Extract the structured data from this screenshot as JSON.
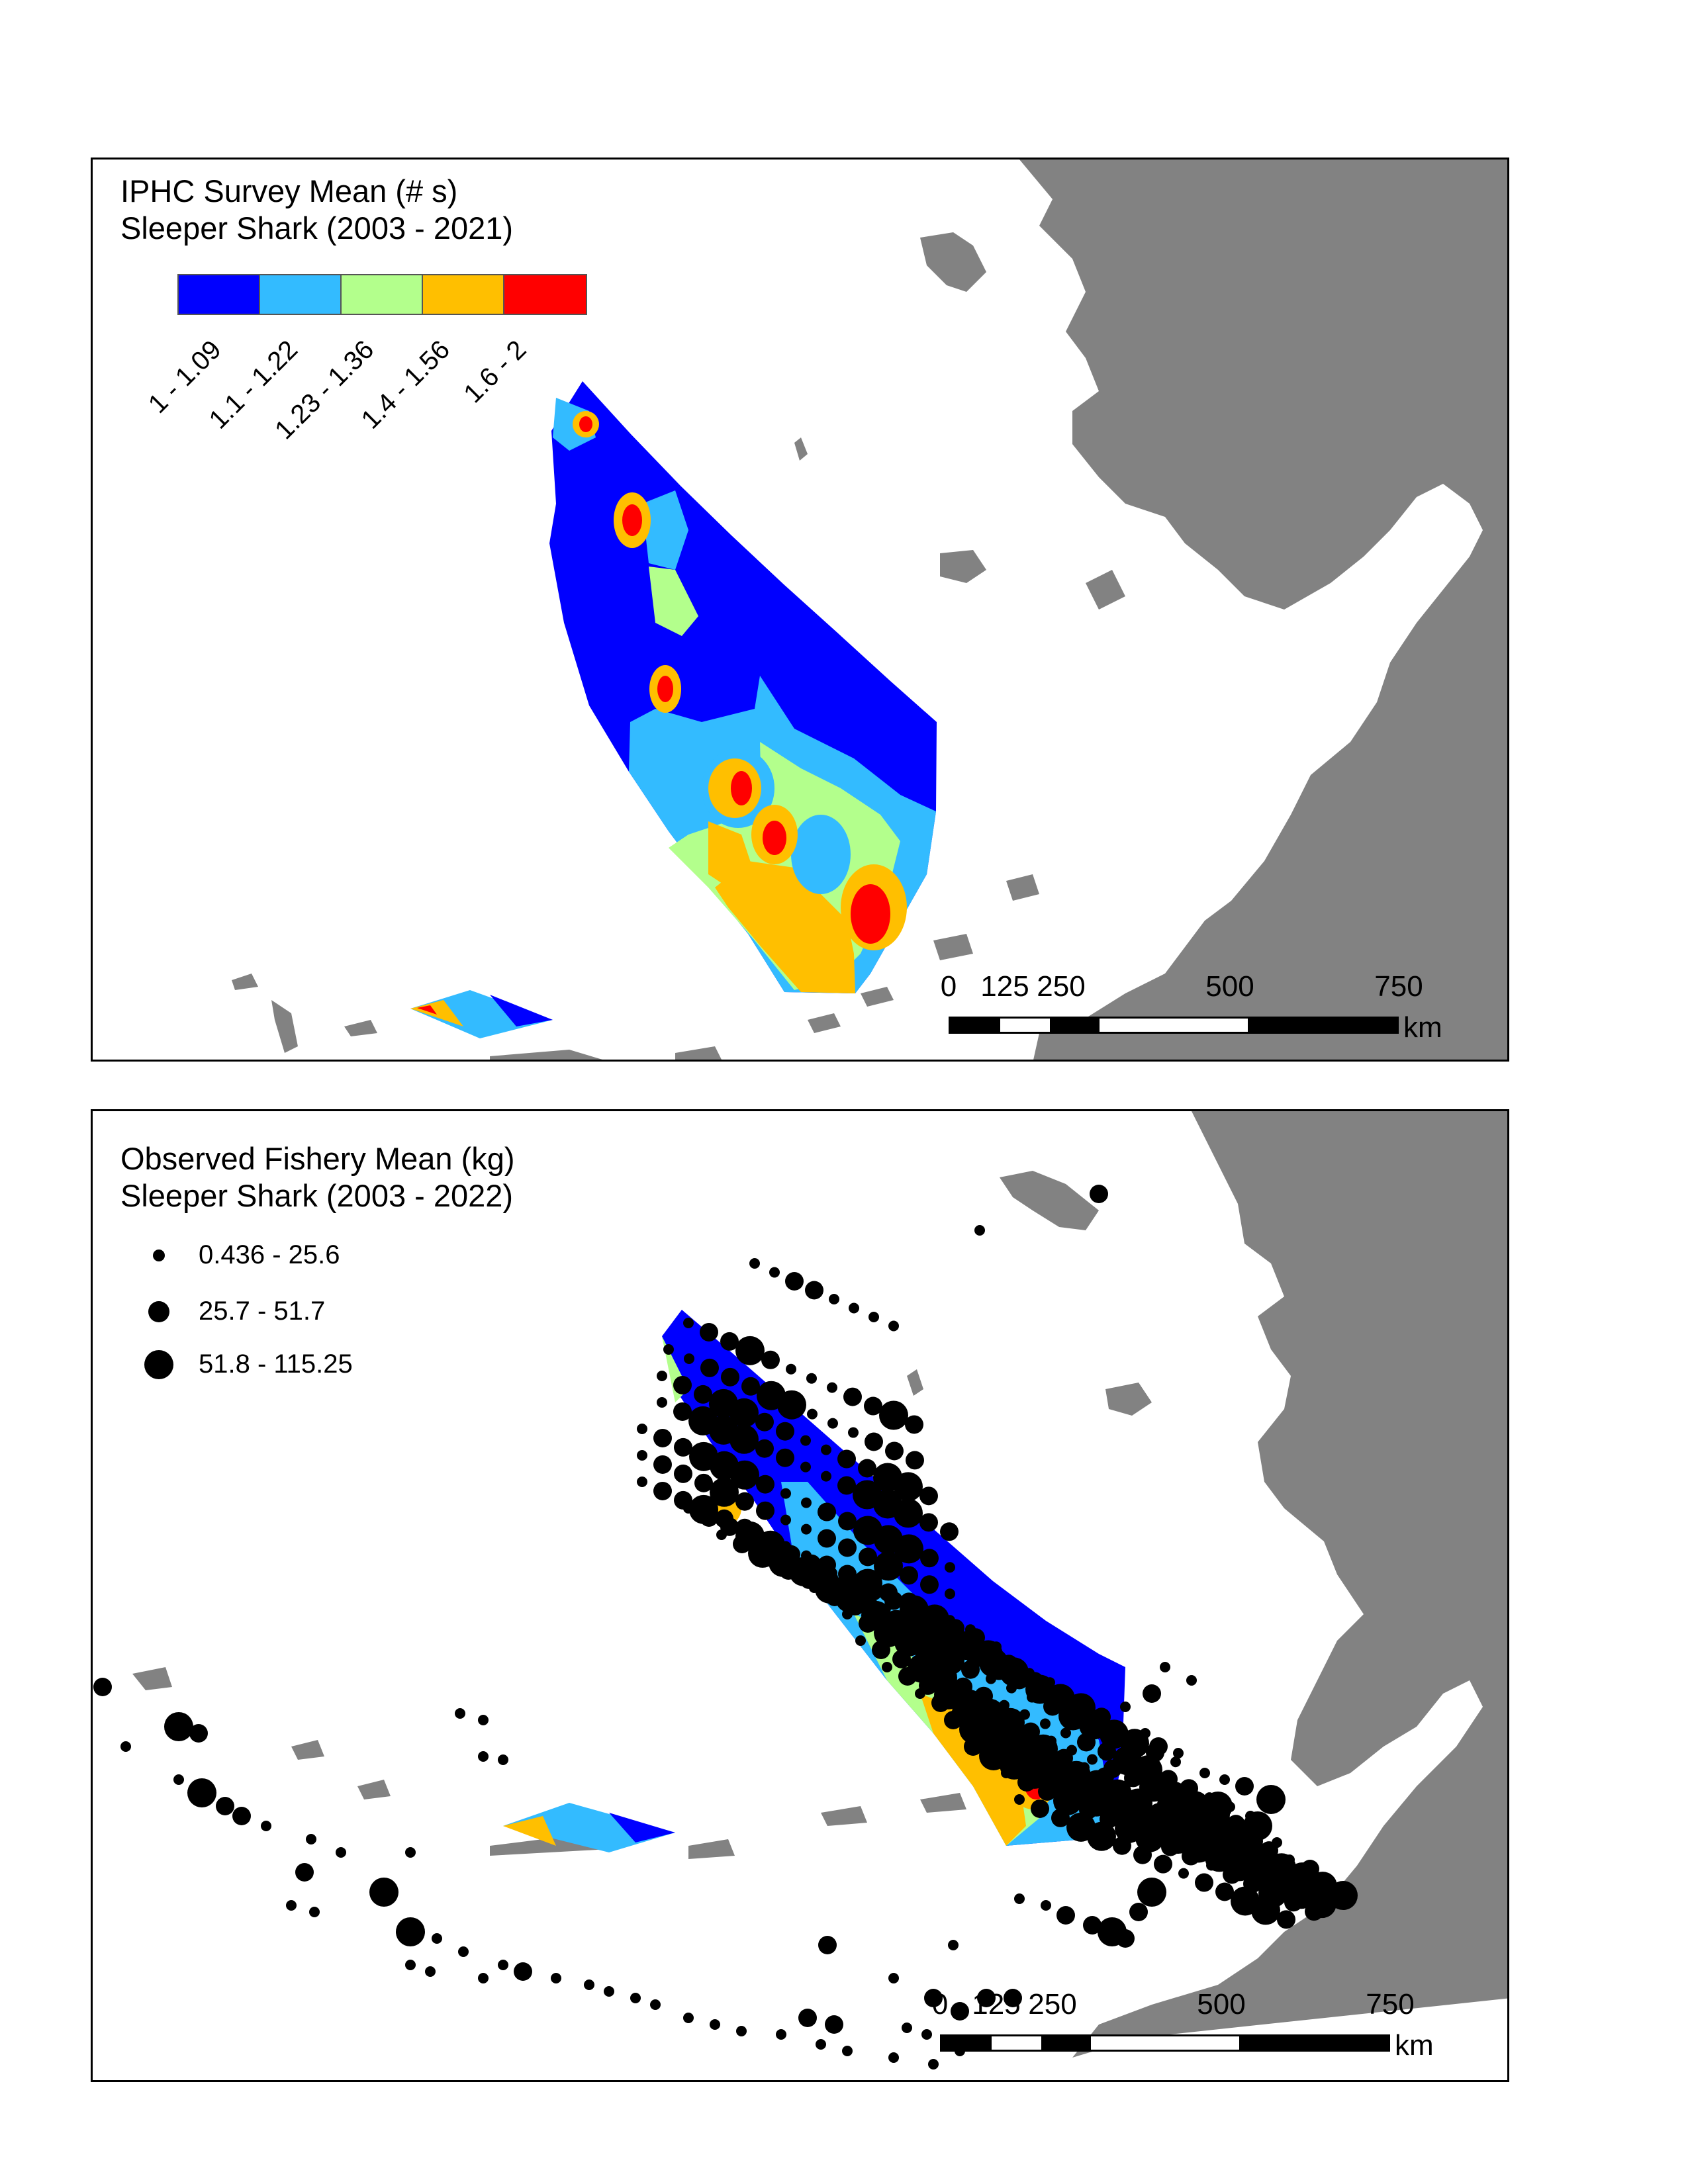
{
  "colors": {
    "land": "#828282",
    "class_1": "#0000ff",
    "class_2": "#33bbff",
    "class_3": "#b3ff8c",
    "class_4": "#ffbf00",
    "class_5": "#ff0000",
    "dot": "#000000"
  },
  "top_map": {
    "title_line1": "IPHC Survey Mean (# s)",
    "title_line2": "Sleeper Shark (2003 - 2021)",
    "legend_classes": [
      {
        "label": "1 - 1.09",
        "color": "#0000ff"
      },
      {
        "label": "1.1 - 1.22",
        "color": "#33bbff"
      },
      {
        "label": "1.23 - 1.36",
        "color": "#b3ff8c"
      },
      {
        "label": "1.4 - 1.56",
        "color": "#ffbf00"
      },
      {
        "label": "1.6 - 2",
        "color": "#ff0000"
      }
    ],
    "scale_bar": {
      "ticks": [
        "0",
        "125",
        "250",
        "500",
        "750"
      ],
      "unit": "km"
    }
  },
  "bottom_map": {
    "title_line1": "Observed Fishery Mean (kg)",
    "title_line2": "Sleeper Shark (2003 - 2022)",
    "legend_sizes": [
      {
        "label": "0.436 - 25.6",
        "size_class": "small"
      },
      {
        "label": "25.7 - 51.7",
        "size_class": "medium"
      },
      {
        "label": "51.8 - 115.25",
        "size_class": "large"
      }
    ],
    "scale_bar": {
      "ticks": [
        "0",
        "125",
        "250",
        "500",
        "750"
      ],
      "unit": "km"
    }
  }
}
